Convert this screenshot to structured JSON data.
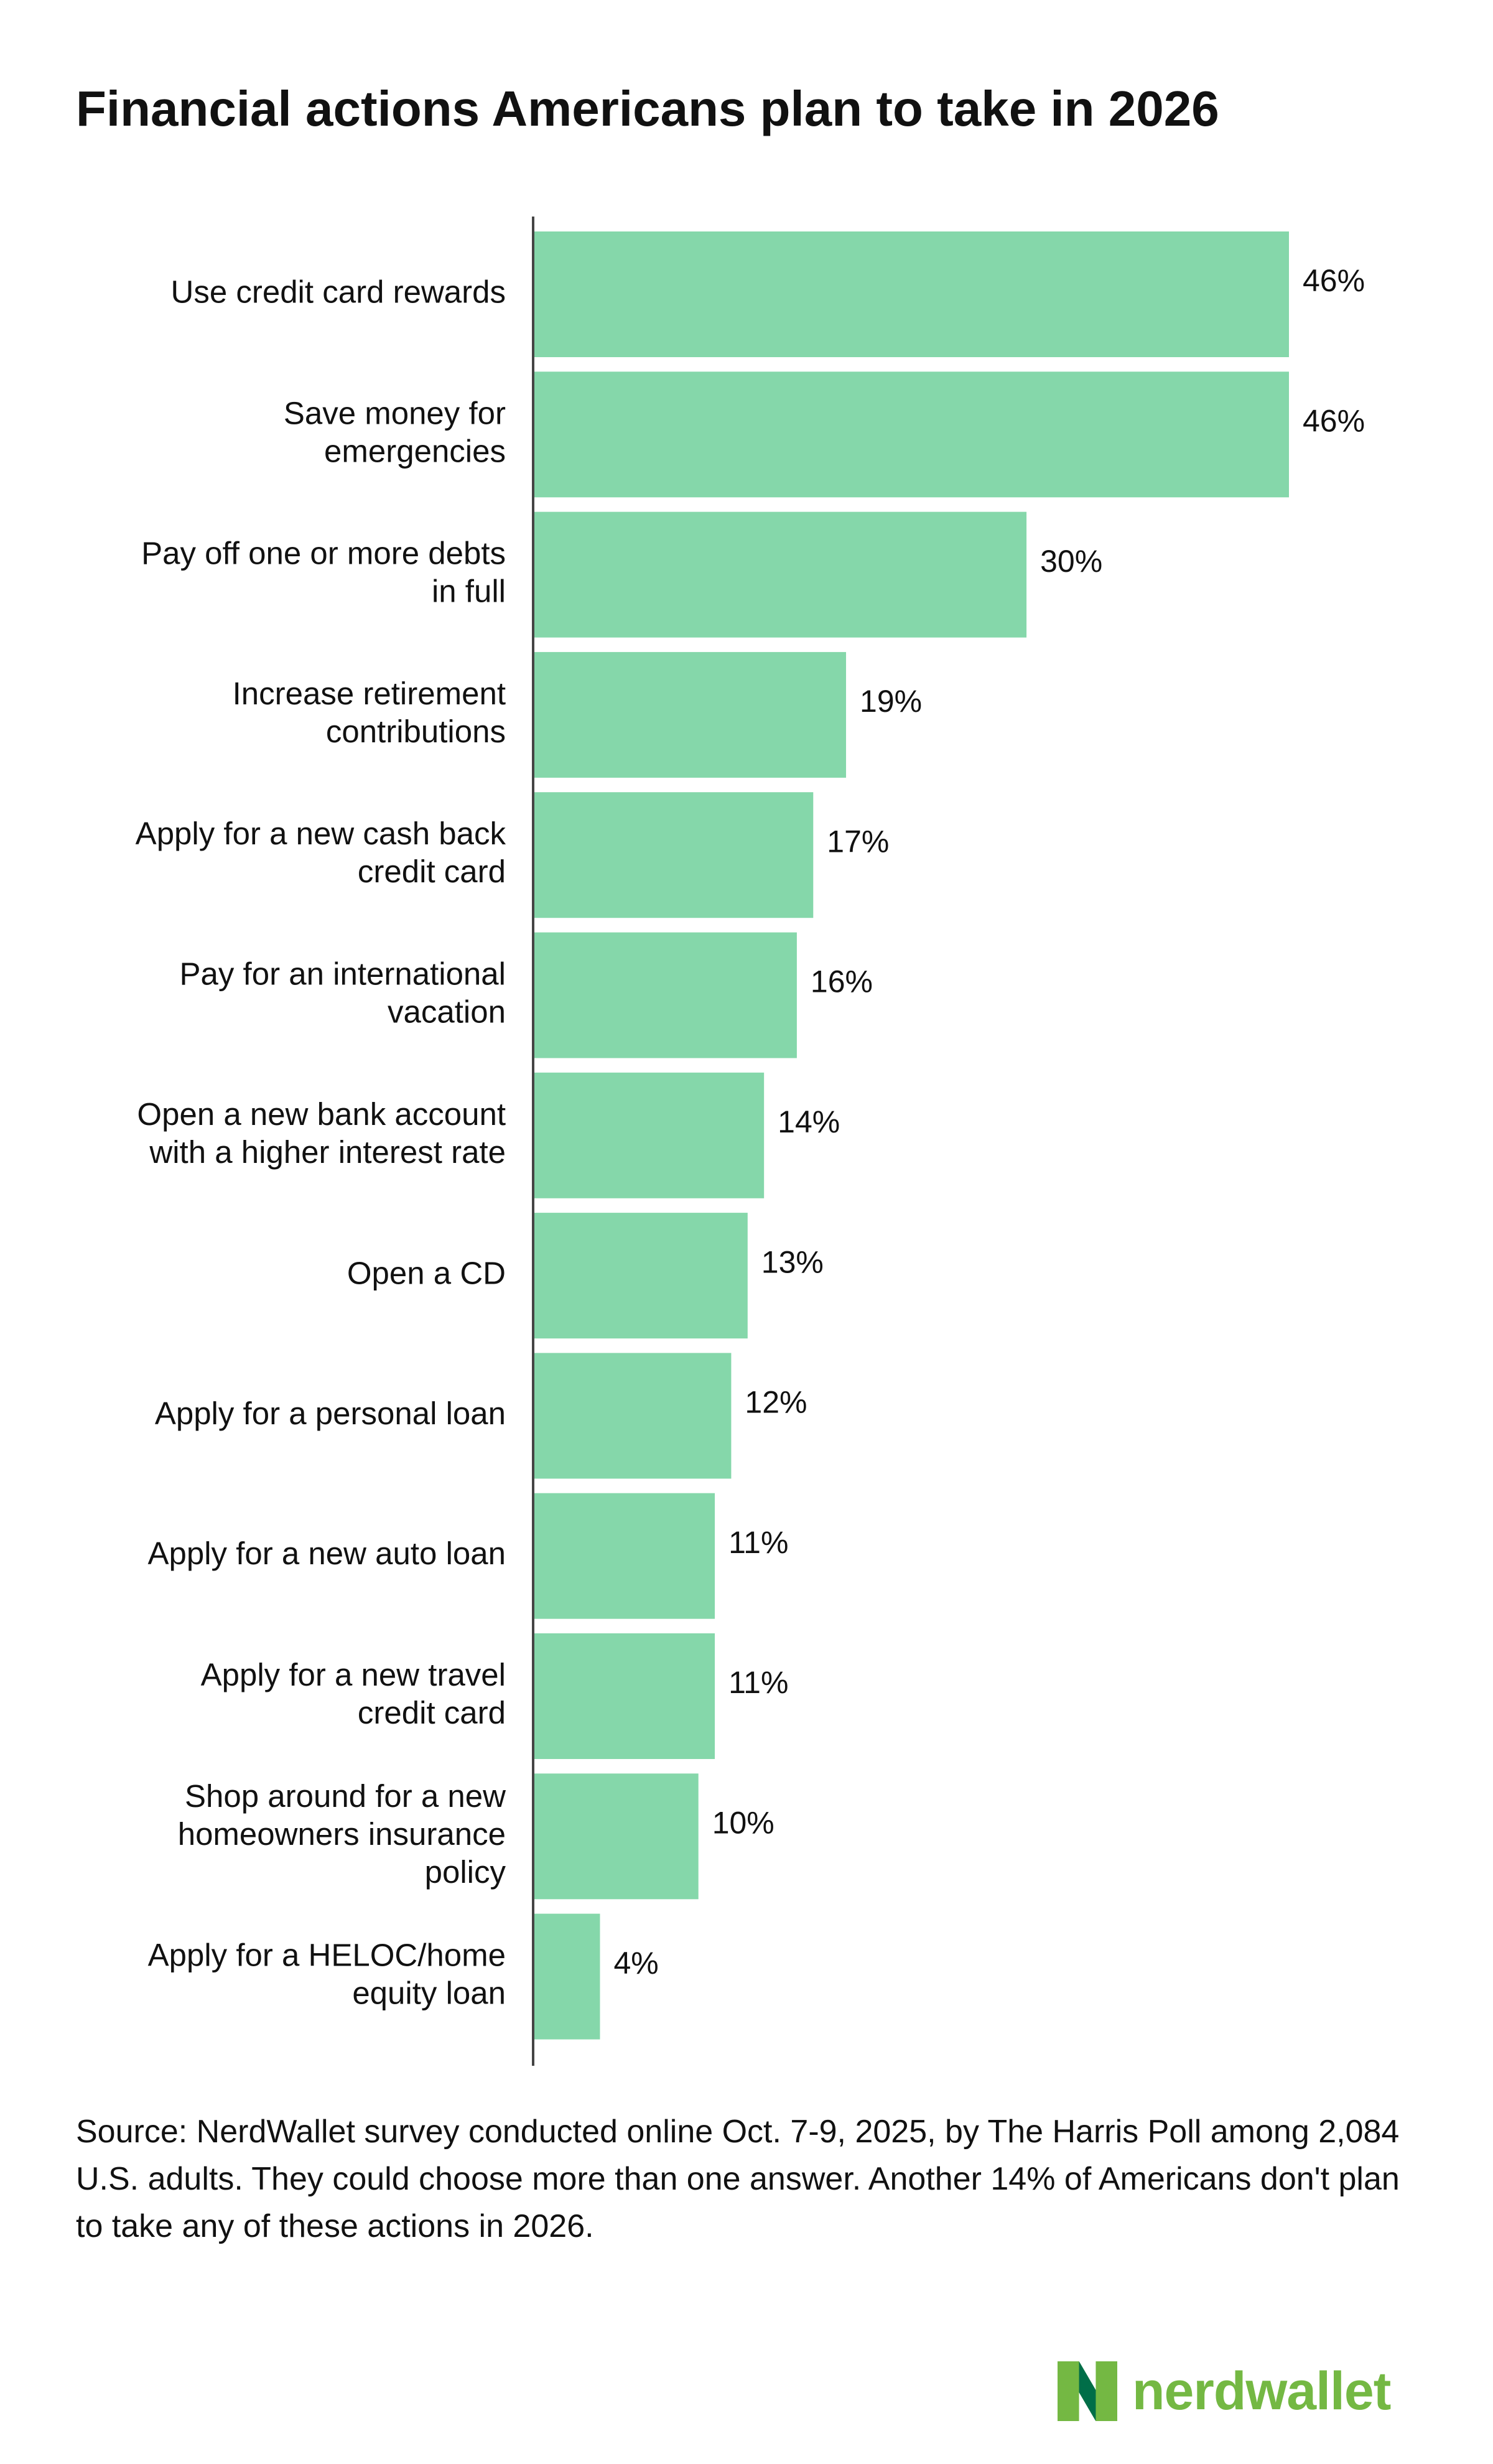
{
  "colors": {
    "bar": "#85d7aa",
    "axis": "#444444",
    "text": "#111111",
    "brand_green": "#74b843",
    "brand_dark": "#006e48"
  },
  "chart_data": {
    "type": "bar",
    "orientation": "horizontal",
    "title": "Financial actions Americans plan to take in 2026",
    "value_suffix": "%",
    "xlim": [
      0,
      46
    ],
    "grid": false,
    "categories": [
      [
        "Use credit card rewards"
      ],
      [
        "Save money for",
        "emergencies"
      ],
      [
        "Pay off one or more debts",
        "in full"
      ],
      [
        "Increase retirement",
        "contributions"
      ],
      [
        "Apply for a new cash back",
        "credit card"
      ],
      [
        "Pay for an international",
        "vacation"
      ],
      [
        "Open a new bank account",
        "with a higher interest rate"
      ],
      [
        "Open a CD"
      ],
      [
        "Apply for a personal loan"
      ],
      [
        "Apply for a new auto loan"
      ],
      [
        "Apply for a new travel",
        "credit card"
      ],
      [
        "Shop around for a new",
        "homeowners insurance",
        "policy"
      ],
      [
        "Apply for a HELOC/home",
        "equity loan"
      ]
    ],
    "values": [
      46,
      46,
      30,
      19,
      17,
      16,
      14,
      13,
      12,
      11,
      11,
      10,
      4
    ],
    "labels": [
      "46%",
      "46%",
      "30%",
      "19%",
      "17%",
      "16%",
      "14%",
      "13%",
      "12%",
      "11%",
      "11%",
      "10%",
      "4%"
    ]
  },
  "footer": {
    "source": "Source: NerdWallet survey conducted online Oct. 7-9, 2025, by The Harris Poll among 2,084 U.S. adults. They could choose more than one answer. Another 14% of Americans don't plan to take any of these actions in 2026."
  },
  "logo": {
    "wordmark": "nerdwallet",
    "icon": "nerdwallet-n-icon"
  }
}
